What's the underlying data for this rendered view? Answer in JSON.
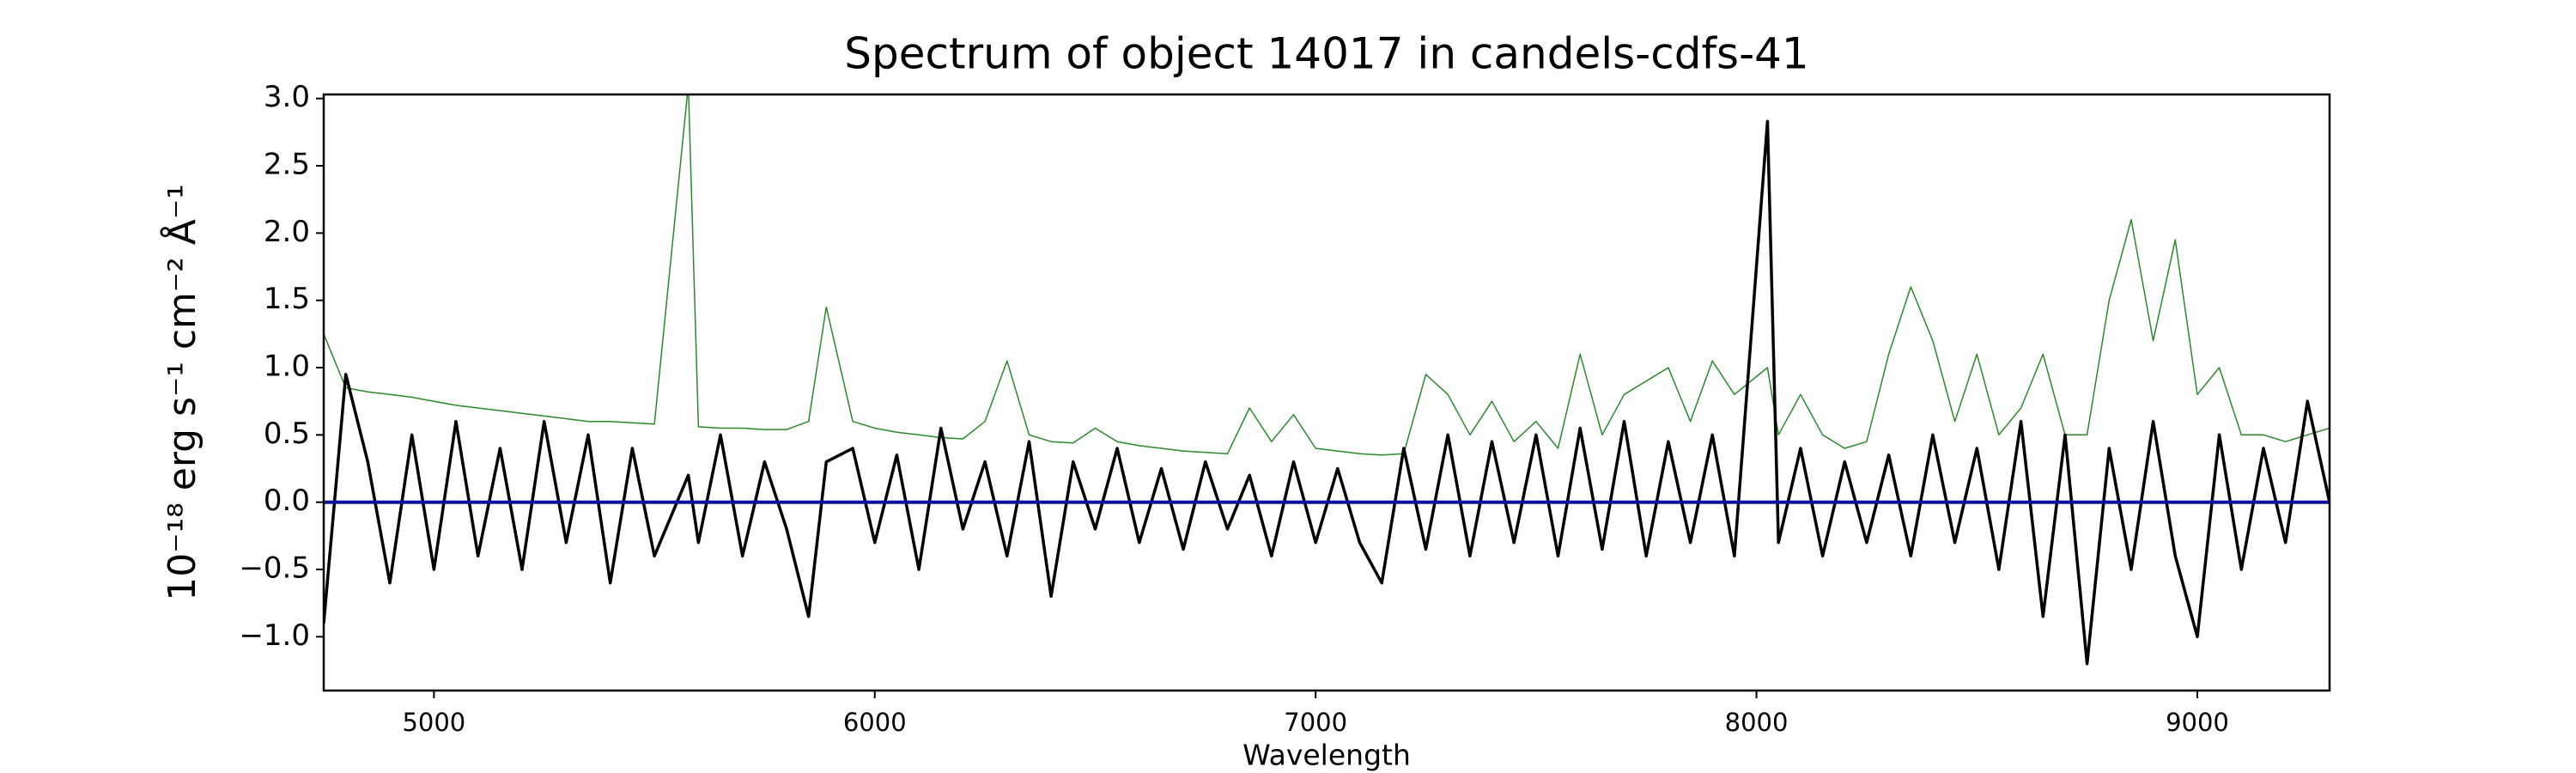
{
  "chart_data": {
    "type": "line",
    "title": "Spectrum of object 14017 in candels-cdfs-41",
    "xlabel": "Wavelength",
    "ylabel": "10⁻¹⁸ erg s⁻¹ cm⁻² Å⁻¹",
    "x": [
      4750,
      4800,
      4850,
      4900,
      4950,
      5000,
      5050,
      5100,
      5150,
      5200,
      5250,
      5300,
      5350,
      5400,
      5450,
      5500,
      5577,
      5600,
      5650,
      5700,
      5750,
      5800,
      5850,
      5890,
      5950,
      6000,
      6050,
      6100,
      6150,
      6200,
      6250,
      6300,
      6350,
      6400,
      6450,
      6500,
      6550,
      6600,
      6650,
      6700,
      6750,
      6800,
      6850,
      6900,
      6950,
      7000,
      7050,
      7100,
      7150,
      7200,
      7250,
      7300,
      7350,
      7400,
      7450,
      7500,
      7550,
      7600,
      7650,
      7700,
      7750,
      7800,
      7850,
      7900,
      7950,
      8025,
      8050,
      8100,
      8150,
      8200,
      8250,
      8300,
      8350,
      8400,
      8450,
      8500,
      8550,
      8600,
      8650,
      8700,
      8750,
      8800,
      8850,
      8900,
      8950,
      9000,
      9050,
      9100,
      9150,
      9200,
      9250,
      9300
    ],
    "series": [
      {
        "color": "#2a8a2a",
        "width": 1.5,
        "values": [
          1.25,
          0.85,
          0.82,
          0.8,
          0.78,
          0.75,
          0.72,
          0.7,
          0.68,
          0.66,
          0.64,
          0.62,
          0.6,
          0.6,
          0.59,
          0.58,
          3.1,
          0.56,
          0.55,
          0.55,
          0.54,
          0.54,
          0.6,
          1.45,
          0.6,
          0.55,
          0.52,
          0.5,
          0.48,
          0.47,
          0.6,
          1.05,
          0.5,
          0.45,
          0.44,
          0.55,
          0.45,
          0.42,
          0.4,
          0.38,
          0.37,
          0.36,
          0.7,
          0.45,
          0.65,
          0.4,
          0.38,
          0.36,
          0.35,
          0.36,
          0.95,
          0.8,
          0.5,
          0.75,
          0.45,
          0.6,
          0.4,
          1.1,
          0.5,
          0.8,
          0.9,
          1.0,
          0.6,
          1.05,
          0.8,
          1.0,
          0.5,
          0.8,
          0.5,
          0.4,
          0.45,
          1.1,
          1.6,
          1.2,
          0.6,
          1.1,
          0.5,
          0.7,
          1.1,
          0.5,
          0.5,
          1.5,
          2.1,
          1.2,
          1.95,
          0.8,
          1.0,
          0.5,
          0.5,
          0.45,
          0.5,
          0.55
        ]
      },
      {
        "color": "#000000",
        "width": 3.5,
        "values": [
          -0.9,
          0.95,
          0.3,
          -0.6,
          0.5,
          -0.5,
          0.6,
          -0.4,
          0.4,
          -0.5,
          0.6,
          -0.3,
          0.5,
          -0.6,
          0.4,
          -0.4,
          0.2,
          -0.3,
          0.5,
          -0.4,
          0.3,
          -0.2,
          -0.85,
          0.3,
          0.4,
          -0.3,
          0.35,
          -0.5,
          0.55,
          -0.2,
          0.3,
          -0.4,
          0.45,
          -0.7,
          0.3,
          -0.2,
          0.4,
          -0.3,
          0.25,
          -0.35,
          0.3,
          -0.2,
          0.2,
          -0.4,
          0.3,
          -0.3,
          0.25,
          -0.3,
          -0.6,
          0.4,
          -0.35,
          0.5,
          -0.4,
          0.45,
          -0.3,
          0.5,
          -0.4,
          0.55,
          -0.35,
          0.6,
          -0.4,
          0.45,
          -0.3,
          0.5,
          -0.4,
          2.83,
          -0.3,
          0.4,
          -0.4,
          0.3,
          -0.3,
          0.35,
          -0.4,
          0.5,
          -0.3,
          0.4,
          -0.5,
          0.6,
          -0.85,
          0.5,
          -1.2,
          0.4,
          -0.5,
          0.6,
          -0.4,
          -1.0,
          0.5,
          -0.5,
          0.4,
          -0.3,
          0.75,
          0.0
        ]
      },
      {
        "color": "#1010a0",
        "width": 4,
        "values": [
          0,
          0,
          0,
          0,
          0,
          0,
          0,
          0,
          0,
          0,
          0,
          0,
          0,
          0,
          0,
          0,
          0,
          0,
          0,
          0,
          0,
          0,
          0,
          0,
          0,
          0,
          0,
          0,
          0,
          0,
          0,
          0,
          0,
          0,
          0,
          0,
          0,
          0,
          0,
          0,
          0,
          0,
          0,
          0,
          0,
          0,
          0,
          0,
          0,
          0,
          0,
          0,
          0,
          0,
          0,
          0,
          0,
          0,
          0,
          0,
          0,
          0,
          0,
          0,
          0,
          0,
          0,
          0,
          0,
          0,
          0,
          0,
          0,
          0,
          0,
          0,
          0,
          0,
          0,
          0,
          0,
          0,
          0,
          0,
          0,
          0,
          0,
          0,
          0,
          0,
          0,
          0
        ]
      }
    ],
    "xlim": [
      4750,
      9300
    ],
    "ylim": [
      -1.4,
      3.03
    ],
    "xticks": [
      5000,
      6000,
      7000,
      8000,
      9000
    ],
    "yticks": [
      {
        "value": -1,
        "label": "−1.0"
      },
      {
        "value": -0.5,
        "label": "−0.5"
      },
      {
        "value": 0,
        "label": "0.0"
      },
      0.5,
      {
        "value": 1,
        "label": "1.0"
      },
      1.5,
      {
        "value": 2,
        "label": "2.0"
      },
      2.5,
      {
        "value": 3,
        "label": "3.0"
      }
    ]
  }
}
